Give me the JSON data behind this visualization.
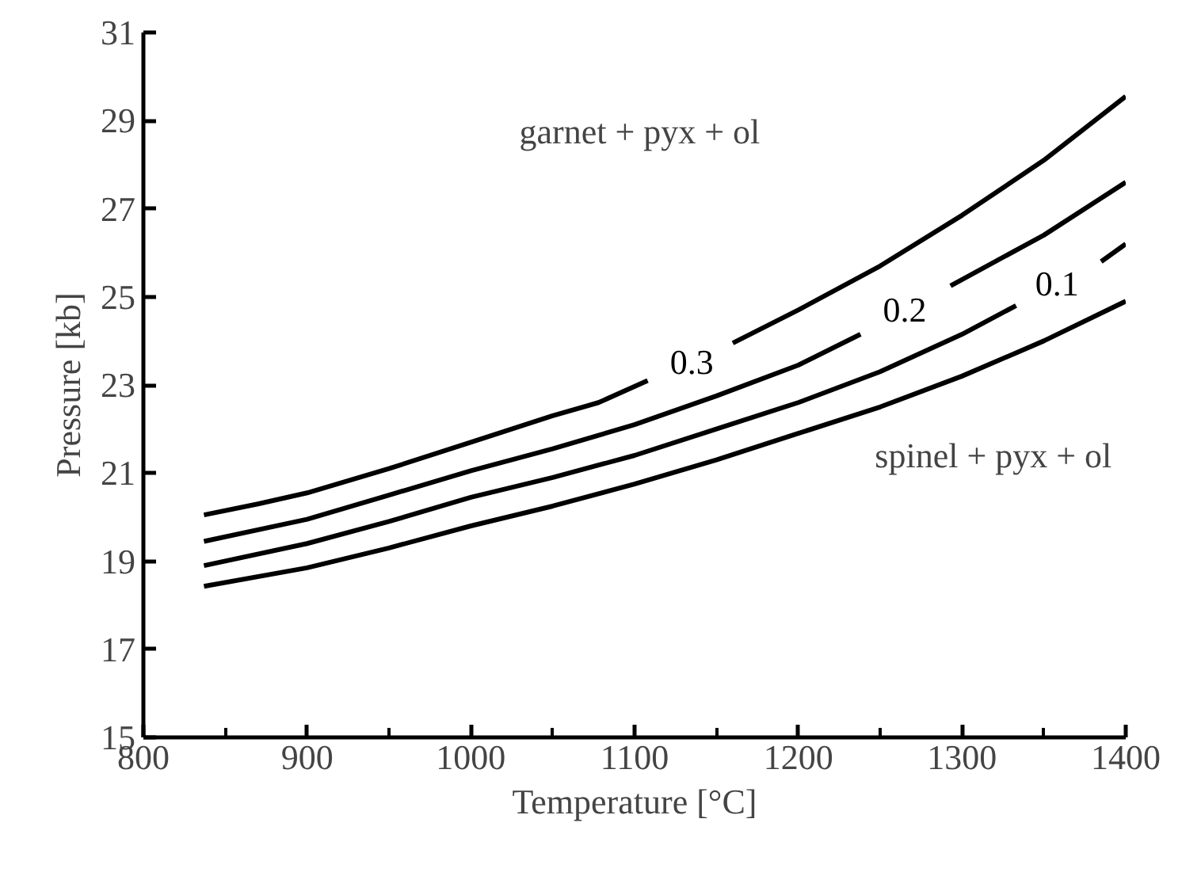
{
  "chart_data": {
    "type": "line",
    "xlabel": "Temperature [°C]",
    "ylabel": "Pressure [kb]",
    "xlim": [
      800,
      1400
    ],
    "ylim": [
      15,
      31
    ],
    "xticks": [
      800,
      {
        "value": 850,
        "label": null
      },
      900,
      {
        "value": 950,
        "label": null
      },
      1000,
      {
        "value": 1050,
        "label": null
      },
      1100,
      {
        "value": 1150,
        "label": null
      },
      1200,
      {
        "value": 1250,
        "label": null
      },
      1300,
      {
        "value": 1350,
        "label": null
      },
      1400
    ],
    "yticks": [
      15,
      17,
      19,
      21,
      23,
      25,
      27,
      29,
      31
    ],
    "grid": false,
    "marker": "none",
    "line_style": "solid",
    "series": [
      {
        "name": "0.3",
        "color": "#000000",
        "x": [
          837,
          870,
          900,
          950,
          1000,
          1050,
          1078,
          1108,
          1135,
          1160,
          1200,
          1250,
          1300,
          1350,
          1400
        ],
        "values": [
          20.05,
          20.3,
          20.55,
          21.1,
          21.7,
          22.3,
          22.6,
          23.1,
          null,
          23.95,
          24.7,
          25.7,
          26.85,
          28.1,
          29.55
        ]
      },
      {
        "name": "0.2",
        "color": "#000000",
        "x": [
          837,
          900,
          950,
          1000,
          1050,
          1100,
          1150,
          1200,
          1238,
          1265,
          1293,
          1350,
          1400
        ],
        "values": [
          19.45,
          19.95,
          20.5,
          21.05,
          21.55,
          22.1,
          22.75,
          23.45,
          24.15,
          null,
          25.25,
          26.4,
          27.6
        ]
      },
      {
        "name": "0.1",
        "color": "#000000",
        "x": [
          837,
          900,
          950,
          1000,
          1050,
          1100,
          1150,
          1200,
          1250,
          1300,
          1333,
          1358,
          1385,
          1400
        ],
        "values": [
          18.9,
          19.4,
          19.9,
          20.45,
          20.9,
          21.4,
          22.0,
          22.6,
          23.3,
          24.15,
          24.8,
          null,
          25.8,
          26.2
        ]
      },
      {
        "color": "#000000",
        "x": [
          837,
          900,
          950,
          1000,
          1050,
          1100,
          1150,
          1200,
          1250,
          1300,
          1350,
          1400
        ],
        "values": [
          18.43,
          18.85,
          19.3,
          19.8,
          20.25,
          20.75,
          21.3,
          21.9,
          22.5,
          23.2,
          24.0,
          24.9
        ]
      }
    ],
    "annotations": [
      "garnet + pyx + ol",
      "spinel + pyx + ol"
    ]
  }
}
